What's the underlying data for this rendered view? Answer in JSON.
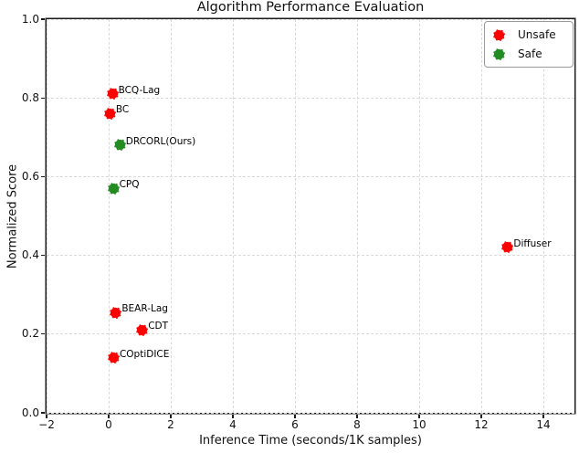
{
  "chart_data": {
    "type": "scatter",
    "title": "Algorithm Performance Evaluation",
    "xlabel": "Inference Time (seconds/1K samples)",
    "ylabel": "Normalized Score",
    "xlim": [
      -2,
      15
    ],
    "ylim": [
      0,
      1
    ],
    "grid": true,
    "xticks": {
      "values": [
        -2,
        0,
        2,
        4,
        6,
        8,
        10,
        12,
        14
      ],
      "labels": [
        "−2",
        "0",
        "2",
        "4",
        "6",
        "8",
        "10",
        "12",
        "14"
      ]
    },
    "yticks": {
      "values": [
        0.0,
        0.2,
        0.4,
        0.6,
        0.8,
        1.0
      ],
      "labels": [
        "0.0",
        "0.2",
        "0.4",
        "0.6",
        "0.8",
        "1.0"
      ]
    },
    "legend": {
      "position": "upper right",
      "items": [
        {
          "label": "Unsafe",
          "color": "#ff0000"
        },
        {
          "label": "Safe",
          "color": "#228B22"
        }
      ]
    },
    "series": [
      {
        "name": "Unsafe",
        "color": "#ff0000",
        "points": [
          {
            "label": "BCQ-Lag",
            "x": 0.12,
            "y": 0.81
          },
          {
            "label": "BC",
            "x": 0.04,
            "y": 0.76
          },
          {
            "label": "Diffuser",
            "x": 12.85,
            "y": 0.42
          },
          {
            "label": "BEAR-Lag",
            "x": 0.23,
            "y": 0.255
          },
          {
            "label": "CDT",
            "x": 1.08,
            "y": 0.21
          },
          {
            "label": "COptiDICE",
            "x": 0.16,
            "y": 0.14
          }
        ]
      },
      {
        "name": "Safe",
        "color": "#228B22",
        "points": [
          {
            "label": "DRCORL(Ours)",
            "x": 0.36,
            "y": 0.68
          },
          {
            "label": "CPQ",
            "x": 0.15,
            "y": 0.57
          }
        ]
      }
    ]
  }
}
